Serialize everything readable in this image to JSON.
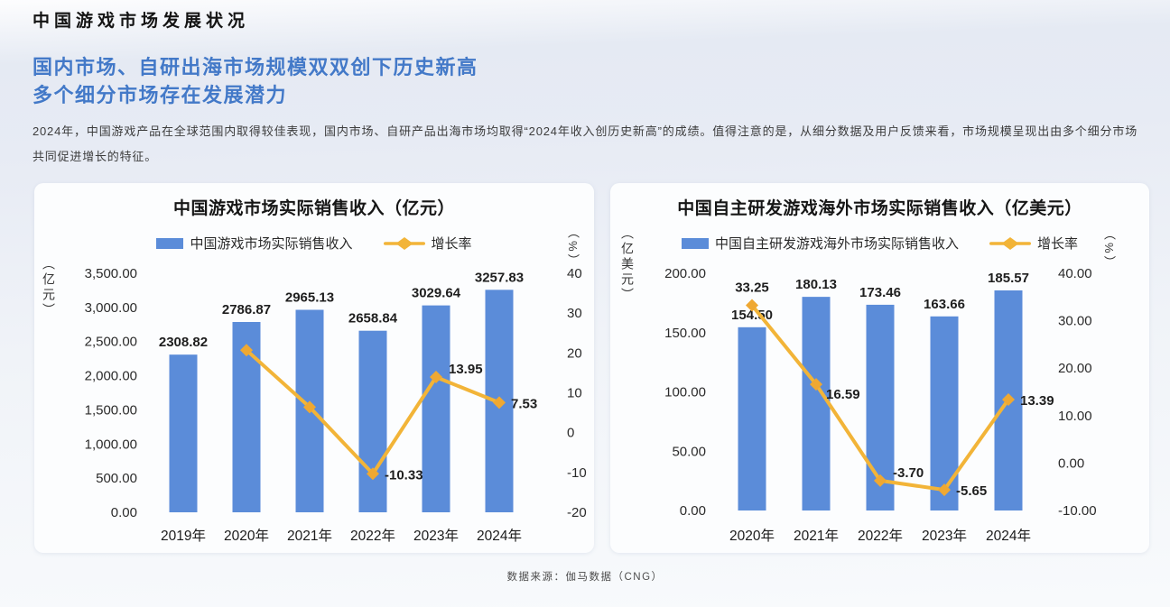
{
  "page_title": "中国游戏市场发展状况",
  "heading_line1": "国内市场、自研出海市场规模双双创下历史新高",
  "heading_line2": "多个细分市场存在发展潜力",
  "paragraph": "2024年，中国游戏产品在全球范围内取得较佳表现，国内市场、自研产品出海市场均取得“2024年收入创历史新高”的成绩。值得注意的是，从细分数据及用户反馈来看，市场规模呈现出由多个细分市场共同促进增长的特征。",
  "footer": "数据来源：伽马数据（CNG）",
  "colors": {
    "bar": "#5b8cd9",
    "line": "#f2b438",
    "marker": "#efa832",
    "heading": "#4379c8"
  },
  "chart_data": [
    {
      "type": "bar",
      "title": "中国游戏市场实际销售收入（亿元）",
      "unit_label": "（亿元）",
      "pct_label": "（%）",
      "legend": [
        "中国游戏市场实际销售收入",
        "增长率"
      ],
      "categories": [
        "2019年",
        "2020年",
        "2021年",
        "2022年",
        "2023年",
        "2024年"
      ],
      "series": [
        {
          "name": "中国游戏市场实际销售收入",
          "type": "bar",
          "values": [
            2308.82,
            2786.87,
            2965.13,
            2658.84,
            3029.64,
            3257.83
          ]
        },
        {
          "name": "增长率",
          "type": "line",
          "values": [
            null,
            20.71,
            6.4,
            -10.33,
            13.95,
            7.53
          ]
        }
      ],
      "bar_labels": [
        "2308.82",
        "2786.87",
        "2965.13",
        "2658.84",
        "3029.64",
        "3257.83"
      ],
      "line_labels": [
        null,
        null,
        null,
        "-10.33",
        "13.95",
        "7.53"
      ],
      "line_label_pos": [
        null,
        null,
        null,
        "right",
        "right-up",
        "right"
      ],
      "left_axis": {
        "ticks": [
          "3,500.00",
          "3,000.00",
          "2,500.00",
          "2,000.00",
          "1,500.00",
          "1,000.00",
          "500.00",
          "0.00"
        ],
        "max": 3500,
        "min": 0
      },
      "right_axis": {
        "ticks": [
          "40",
          "30",
          "20",
          "10",
          "0",
          "-10",
          "-20"
        ],
        "max": 40,
        "min": -20
      }
    },
    {
      "type": "bar",
      "title": "中国自主研发游戏海外市场实际销售收入（亿美元）",
      "unit_label": "（亿美元）",
      "pct_label": "（%）",
      "legend": [
        "中国自主研发游戏海外市场实际销售收入",
        "增长率"
      ],
      "categories": [
        "2020年",
        "2021年",
        "2022年",
        "2023年",
        "2024年"
      ],
      "series": [
        {
          "name": "中国自主研发游戏海外市场实际销售收入",
          "type": "bar",
          "values": [
            154.5,
            180.13,
            173.46,
            163.66,
            185.57
          ]
        },
        {
          "name": "增长率",
          "type": "line",
          "values": [
            33.25,
            16.59,
            -3.7,
            -5.65,
            13.39
          ]
        }
      ],
      "bar_labels": [
        "154.50",
        "180.13",
        "173.46",
        "163.66",
        "185.57"
      ],
      "line_labels": [
        "33.25",
        "16.59",
        "-3.70",
        "-5.65",
        "13.39"
      ],
      "line_label_pos": [
        "above",
        "right-down",
        "right-up",
        "right",
        "right"
      ],
      "left_axis": {
        "ticks": [
          "200.00",
          "150.00",
          "100.00",
          "50.00",
          "0.00"
        ],
        "max": 200,
        "min": 0
      },
      "right_axis": {
        "ticks": [
          "40.00",
          "30.00",
          "20.00",
          "10.00",
          "0.00",
          "-10.00"
        ],
        "max": 40,
        "min": -10
      }
    }
  ]
}
